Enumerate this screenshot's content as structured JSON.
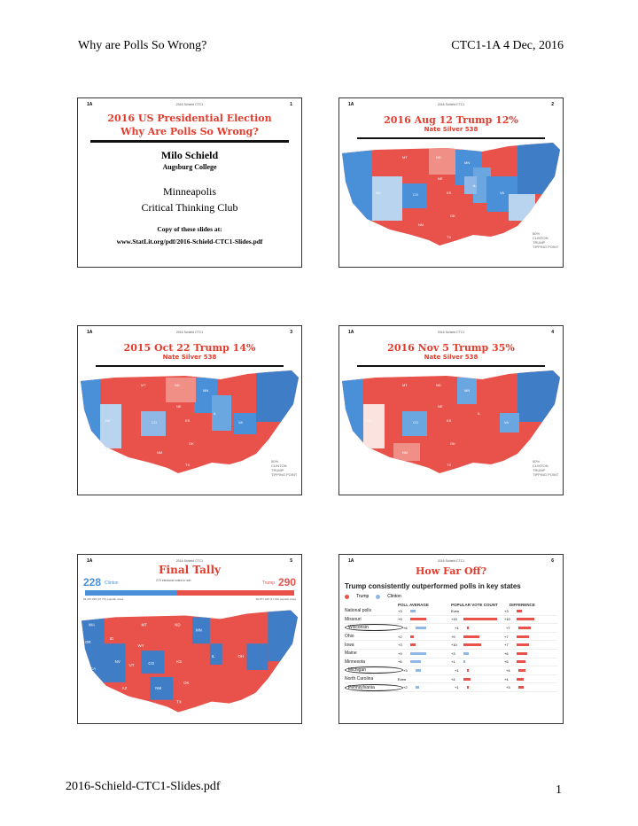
{
  "page": {
    "header_left": "Why are Polls So Wrong?",
    "header_right": "CTC1-1A   4 Dec, 2016",
    "footer_left": "2016-Schield-CTC1-Slides.pdf",
    "footer_right": "1"
  },
  "colors": {
    "red": "#e8524a",
    "blue": "#4a90d9",
    "title_red": "#e33b2c"
  },
  "slides": [
    {
      "code": "1A",
      "credit": "2016 Schield CTC1",
      "number": "1",
      "title1": "2016 US Presidential Election",
      "title2": "Why Are Polls So Wrong?",
      "author": "Milo Schield",
      "affiliation": "Augsburg College",
      "city": "Minneapolis",
      "club": "Critical Thinking Club",
      "copy_label": "Copy of these slides at:",
      "url": "www.StatLit.org/pdf/2016-Schield-CTC1-Slides.pdf"
    },
    {
      "code": "1A",
      "credit": "2016 Schield CTC1",
      "number": "2",
      "title": "2016  Aug 12    Trump 12%",
      "subtitle": "Nate Silver 538",
      "legend": [
        "50%",
        "CLINTON",
        "TRUMP",
        "TIPPING POINT"
      ]
    },
    {
      "code": "1A",
      "credit": "2016 Schield CTC1",
      "number": "3",
      "title": "2015 Oct 22  Trump 14%",
      "subtitle": "Nate Silver 538",
      "legend": [
        "50%",
        "CLINTON",
        "TRUMP",
        "TIPPING POINT"
      ]
    },
    {
      "code": "1A",
      "credit": "2016 Schield CTC1",
      "number": "4",
      "title": "2016 Nov 5  Trump 35%",
      "subtitle": "Nate Silver 538",
      "legend": [
        "50%",
        "CLINTON",
        "TRUMP",
        "TIPPING POINT"
      ]
    },
    {
      "code": "1A",
      "credit": "2016 Schield CTC1",
      "number": "5",
      "title": "Final Tally",
      "clinton_ev": "228",
      "clinton_label": "Clinton",
      "trump_ev": "290",
      "trump_label": "Trump",
      "needed": "270 electoral votes to win",
      "clinton_pop": "62,467,295 (47.7%) popular votes",
      "trump_pop": "60,877,225 (47.4%) popular votes"
    },
    {
      "code": "1A",
      "credit": "2016 Schield CTC1",
      "number": "6",
      "title": "How Far Off?",
      "headline": "Trump consistently outperformed polls in key states",
      "legend_trump": "Trump",
      "legend_clinton": "Clinton",
      "col_poll": "POLL AVERAGE",
      "col_vote": "POPULAR VOTE COUNT",
      "col_diff": "DIFFERENCE",
      "rows": [
        {
          "state": "National polls",
          "poll": "+3",
          "vote": "Even",
          "diff": "+3"
        },
        {
          "state": "Missouri",
          "poll": "+9",
          "vote": "+19",
          "diff": "+10"
        },
        {
          "state": "Wisconsin",
          "poll": "+6",
          "vote": "+1",
          "diff": "+7"
        },
        {
          "state": "Ohio",
          "poll": "+2",
          "vote": "+9",
          "diff": "+7"
        },
        {
          "state": "Iowa",
          "poll": "+3",
          "vote": "+10",
          "diff": "+7"
        },
        {
          "state": "Maine",
          "poll": "+9",
          "vote": "+3",
          "diff": "+6"
        },
        {
          "state": "Minnesota",
          "poll": "+6",
          "vote": "+1",
          "diff": "+5"
        },
        {
          "state": "Michigan",
          "poll": "+3",
          "vote": "+1",
          "diff": "+4"
        },
        {
          "state": "North Carolina",
          "poll": "Even",
          "vote": "+4",
          "diff": "+4"
        },
        {
          "state": "Pennsylvania",
          "poll": "+2",
          "vote": "+1",
          "diff": "+3"
        }
      ]
    }
  ]
}
